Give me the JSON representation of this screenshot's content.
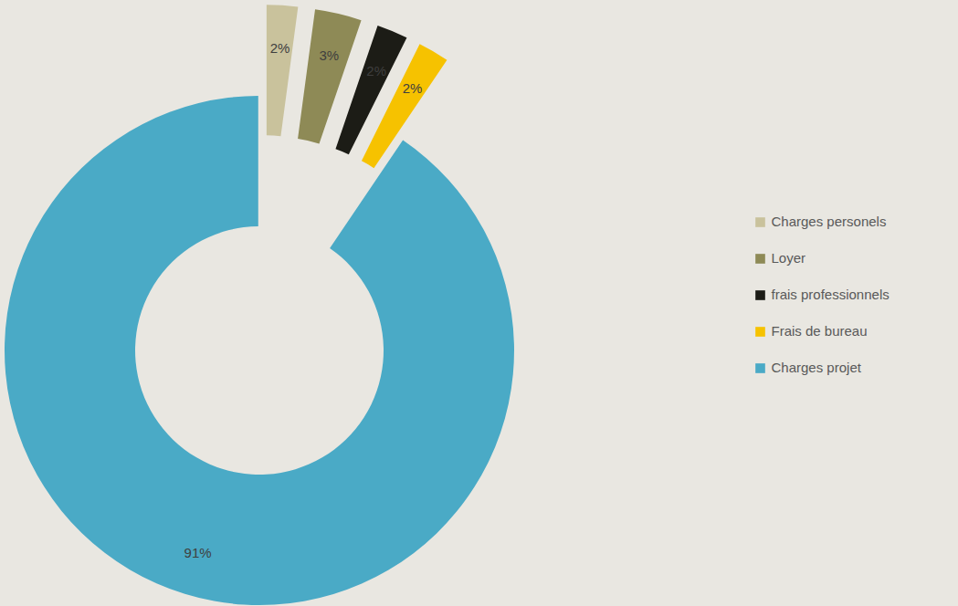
{
  "chart_data": {
    "type": "pie",
    "categories": [
      "Charges personels",
      "Loyer",
      "frais professionnels",
      "Frais de bureau",
      "Charges projet"
    ],
    "values": [
      2,
      3,
      2,
      2,
      91
    ],
    "value_labels": [
      "2%",
      "3%",
      "2%",
      "2%",
      "91%"
    ],
    "colors": [
      "#c9c29c",
      "#8e8a56",
      "#1c1c16",
      "#f6c200",
      "#4aaac6"
    ],
    "data_labels": true,
    "legend": "right"
  }
}
